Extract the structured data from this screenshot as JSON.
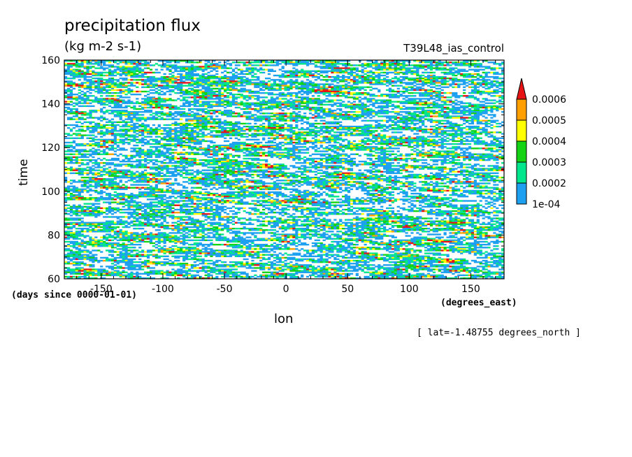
{
  "chart_data": {
    "type": "heatmap",
    "title": "precipitation flux",
    "units": "(kg m-2 s-1)",
    "run_label": "T39L48_ias_control",
    "xlabel": "lon",
    "x_units": "(degrees_east)",
    "ylabel": "time",
    "y_units": "(days since 0000-01-01)",
    "annotation": "[ lat=-1.48755 degrees_north ]",
    "xlim": [
      -180,
      177
    ],
    "ylim": [
      60,
      160
    ],
    "x_ticks": [
      -150,
      -100,
      -50,
      0,
      50,
      100,
      150
    ],
    "x_tick_labels": [
      "-150",
      "-100",
      "-50",
      "0",
      "50",
      "100",
      "150"
    ],
    "y_ticks": [
      60,
      80,
      100,
      120,
      140,
      160
    ],
    "y_tick_labels": [
      "60",
      "80",
      "100",
      "120",
      "140",
      "160"
    ],
    "colorbar": {
      "levels": [
        0.0001,
        0.0002,
        0.0003,
        0.0004,
        0.0005,
        0.0006
      ],
      "level_labels": [
        "1e-04",
        "0.0002",
        "0.0003",
        "0.0004",
        "0.0005",
        "0.0006"
      ],
      "colors": [
        "#1ea0f0",
        "#00e68c",
        "#14d214",
        "#ffff00",
        "#ffa000",
        "#e61414"
      ],
      "extend": "max"
    },
    "field_description": "noisy zonal streaks of precipitation, mostly light (blue/teal) with scattered green, yellow and red maxima"
  }
}
